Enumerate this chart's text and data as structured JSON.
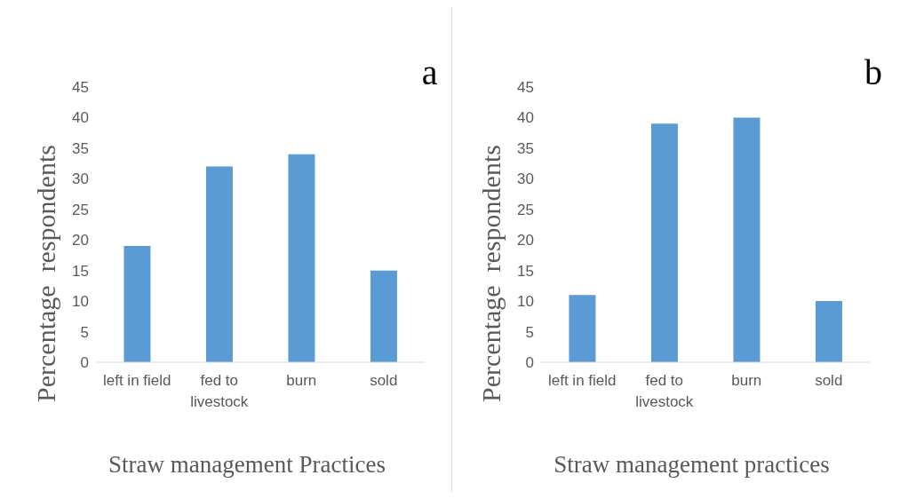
{
  "chart_data": [
    {
      "type": "bar",
      "title": "a",
      "xlabel": "Straw management Practices",
      "ylabel": "Percentage  respondents",
      "categories": [
        "left in field",
        "fed to livestock",
        "burn",
        "sold"
      ],
      "values": [
        19,
        32,
        34,
        15
      ],
      "color": "#5b9bd5",
      "ylim": [
        0,
        45
      ],
      "yticks": [
        0,
        5,
        10,
        15,
        20,
        25,
        30,
        35,
        40,
        45
      ],
      "grid": false,
      "legend": false
    },
    {
      "type": "bar",
      "title": "b",
      "xlabel": "Straw management practices",
      "ylabel": "Percentage  respondents",
      "categories": [
        "left in field",
        "fed to livestock",
        "burn",
        "sold"
      ],
      "values": [
        11,
        39,
        40,
        10
      ],
      "color": "#5b9bd5",
      "ylim": [
        0,
        45
      ],
      "yticks": [
        0,
        5,
        10,
        15,
        20,
        25,
        30,
        35,
        40,
        45
      ],
      "grid": false,
      "legend": false
    }
  ]
}
